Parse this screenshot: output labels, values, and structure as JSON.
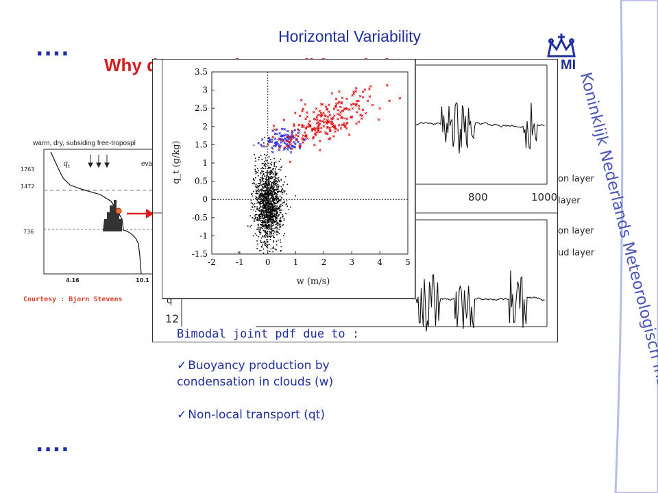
{
  "slide": {
    "title": "Horizontal Variability",
    "subtitle": "Why do not we have well founded ?",
    "ellipsis_top": "....",
    "ellipsis_bottom": "....",
    "side_text": "Koninklijk Nederlands Meteorologisch Instituut",
    "logo_text": "MI"
  },
  "profile_figure": {
    "caption_top": "warm, dry, subsiding free-tropospl",
    "caption_evap": "evap",
    "qt_label": "q",
    "qt_sub": "t",
    "y_ticks": [
      "1763",
      "1472",
      "736"
    ],
    "x_ticks": [
      "4.16",
      "10.1"
    ],
    "courtesy": "Courtesy : Bjorn Stevens"
  },
  "back_plot": {
    "x_ticks": [
      "800",
      "1000"
    ],
    "y_tick": "12",
    "y_label_fragment": "q",
    "legend_top": [
      "on layer",
      "layer"
    ],
    "legend_bottom": [
      "on layer",
      "ud layer"
    ]
  },
  "chart_data": {
    "type": "scatter",
    "xlabel": "w (m/s)",
    "ylabel": "q_t (g/kg)",
    "xlim": [
      -2,
      5
    ],
    "ylim": [
      -1.5,
      3.5
    ],
    "x_ticks": [
      "-2",
      "-1",
      "0",
      "1",
      "2",
      "3",
      "4",
      "5"
    ],
    "y_ticks": [
      "3.5",
      "3",
      "2.5",
      "2",
      "1.5",
      "1",
      "0.5",
      "0",
      "-0.5",
      "-1",
      "-1.5"
    ],
    "reference_lines": {
      "x": 0,
      "y": 0
    },
    "series": [
      {
        "color": "#000000",
        "marker": "dot",
        "count": 1400,
        "center": [
          0.0,
          -0.1
        ],
        "spread": [
          0.25,
          0.55
        ]
      },
      {
        "color": "#2a2ae0",
        "marker": "x",
        "count": 90,
        "center": [
          0.6,
          1.6
        ],
        "spread": [
          0.45,
          0.15
        ]
      },
      {
        "color": "#e01010",
        "marker": "x",
        "count": 230,
        "center": [
          2.2,
          2.4
        ],
        "spread": [
          0.9,
          0.3
        ]
      }
    ]
  },
  "bimodal": {
    "title": "Bimodal joint pdf due to :",
    "items": [
      "Buoyancy production by condensation in clouds (w)",
      "Non-local transport (qt)"
    ]
  },
  "colors": {
    "title": "#1f2fa0",
    "subtitle": "#d21f1f",
    "side_band": "#c8ccf0",
    "courtesy": "#e0402e"
  }
}
